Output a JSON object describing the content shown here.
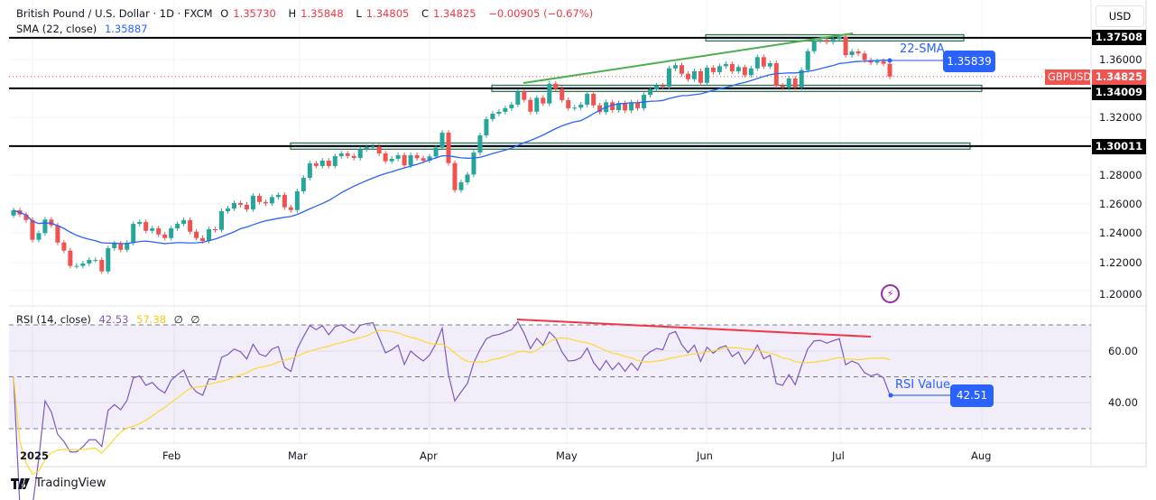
{
  "header": {
    "symbol_title": "British Pound / U.S. Dollar · 1D · FXCM",
    "open_label": "O",
    "open": "1.35730",
    "high_label": "H",
    "high": "1.35848",
    "low_label": "L",
    "low": "1.34805",
    "close_label": "C",
    "close": "1.34825",
    "change": "−0.00905 (−0.67%)",
    "sma_label": "SMA (22, close)",
    "sma_value": "1.35887"
  },
  "rsi_legend": {
    "label": "RSI (14, close)",
    "rsi": "42.53",
    "ma": "57.38",
    "extra1": "∅",
    "extra2": "∅"
  },
  "currency": "USD",
  "price_axis": {
    "ticks": [
      "1.36000",
      "1.32000",
      "1.28000",
      "1.26000",
      "1.24000",
      "1.22000",
      "1.20000"
    ]
  },
  "rsi_axis": {
    "ticks": [
      "60.00",
      "40.00"
    ]
  },
  "time_axis": {
    "labels": [
      "2025",
      "Feb",
      "Mar",
      "Apr",
      "May",
      "Jun",
      "Jul",
      "Aug"
    ]
  },
  "levels": [
    {
      "label": "1.37508",
      "price": 1.37508
    },
    {
      "label": "1.34009",
      "price": 1.34009
    },
    {
      "label": "1.30011",
      "price": 1.30011
    }
  ],
  "current_price": {
    "symbol": "GBPUSD",
    "label": "1.34825",
    "price": 1.34825
  },
  "annotations": {
    "sma_text": "22-SMA",
    "sma_box": "1.35839",
    "rsi_text": "RSI Value",
    "rsi_box": "42.51"
  },
  "colors": {
    "up": "#26a69a",
    "down": "#ef5350",
    "sma": "#2962ff",
    "rsi": "#7e57c2",
    "rsi_ma": "#fdd835",
    "trendline": "#4caf50",
    "rsi_trendline": "#f23645",
    "zone_fill": "#dbe6f7",
    "zone_border": "#1b5e20"
  },
  "footer": {
    "brand": "TradingView"
  },
  "chart_data": {
    "type": "candlestick",
    "period": "1D",
    "x_range": [
      "2025-01-01",
      "2025-07-14"
    ],
    "ylim": [
      1.195,
      1.38
    ],
    "first_open": 1.252,
    "close": [
      1.2556,
      1.2527,
      1.2489,
      1.2352,
      1.2398,
      1.2492,
      1.2452,
      1.2333,
      1.2277,
      1.2171,
      1.2171,
      1.2188,
      1.2213,
      1.2213,
      1.2133,
      1.2294,
      1.2325,
      1.2283,
      1.2331,
      1.2462,
      1.2475,
      1.2414,
      1.2431,
      1.2389,
      1.2364,
      1.2431,
      1.2462,
      1.2488,
      1.2408,
      1.2364,
      1.2344,
      1.2425,
      1.2421,
      1.255,
      1.2569,
      1.2606,
      1.2594,
      1.2563,
      1.2656,
      1.2614,
      1.2604,
      1.2648,
      1.2663,
      1.2577,
      1.2558,
      1.2688,
      1.2781,
      1.2881,
      1.2863,
      1.29,
      1.2863,
      1.2931,
      1.295,
      1.2933,
      1.2919,
      1.2979,
      1.2992,
      1.2998,
      1.295,
      1.2896,
      1.2913,
      1.2938,
      1.2867,
      1.2938,
      1.2917,
      1.29,
      1.2929,
      1.299,
      1.3094,
      1.2883,
      1.2696,
      1.275,
      1.2804,
      1.2956,
      1.3075,
      1.3188,
      1.3225,
      1.3238,
      1.3263,
      1.3288,
      1.3379,
      1.3321,
      1.3239,
      1.3335,
      1.3296,
      1.3433,
      1.3398,
      1.3319,
      1.3263,
      1.3267,
      1.3288,
      1.3363,
      1.3283,
      1.3236,
      1.3304,
      1.325,
      1.3298,
      1.3248,
      1.3304,
      1.3263,
      1.3356,
      1.3394,
      1.3419,
      1.3413,
      1.3539,
      1.3561,
      1.3502,
      1.3464,
      1.3519,
      1.3439,
      1.3544,
      1.3513,
      1.3554,
      1.3569,
      1.3519,
      1.3548,
      1.3492,
      1.3539,
      1.3617,
      1.3552,
      1.3575,
      1.3419,
      1.3408,
      1.3469,
      1.3408,
      1.3527,
      1.3658,
      1.3731,
      1.3736,
      1.3722,
      1.3742,
      1.3758,
      1.3631,
      1.3656,
      1.3642,
      1.3596,
      1.3579,
      1.3589,
      1.3571,
      1.34825
    ],
    "indicators": {
      "sma_period": 22,
      "rsi_period": 14,
      "rsi_ma_period": 14,
      "rsi_levels": [
        70,
        50,
        30
      ],
      "rsi_ylim": [
        20,
        80
      ]
    }
  }
}
